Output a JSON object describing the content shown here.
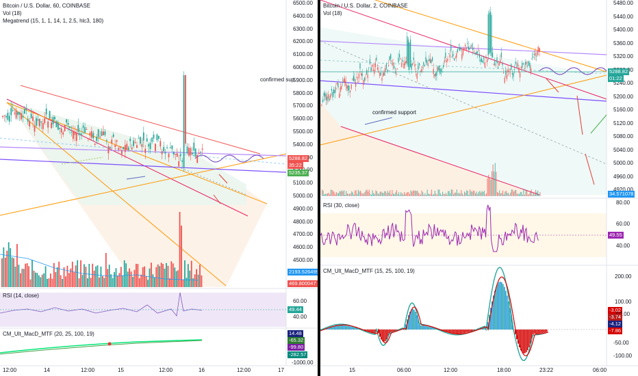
{
  "left": {
    "title": "Bitcoin / U.S. Dollar, 60, COINBASE",
    "vol": "Vol (18)",
    "megatrend": "Megatrend (15, 1, 1, 14, 1, 2.5, hlc3, 180)",
    "annotation": "confirmed sup",
    "price_ticks": [
      "6500.00",
      "6400.00",
      "6300.00",
      "6200.00",
      "6100.00",
      "6000.00",
      "5900.00",
      "5800.00",
      "5700.00",
      "5600.00",
      "5500.00",
      "5400.00",
      "5300.00",
      "5200.00",
      "5100.00",
      "5000.00",
      "4900.00",
      "4800.00",
      "4700.00",
      "4600.00",
      "4500.00"
    ],
    "price_tag": "5288.82",
    "countdown_tag": "35:22",
    "green_tag": "5235.37",
    "vol_tag": "2193.526499",
    "vol_tag2": "469.800047",
    "rsi_title": "RSI (14, close)",
    "rsi_ticks": [
      "60.00",
      "40.00"
    ],
    "rsi_tag": "49.44",
    "macd_title": "CM_Ult_MacD_MTF (20, 25, 100, 19)",
    "macd_tags": [
      "14.48",
      "-65.32",
      "-99.80",
      "-282.57"
    ],
    "macd_tick": "-1000.00",
    "time_axis": [
      "12:00",
      "14",
      "12:00",
      "15",
      "12:00",
      "16",
      "12:00",
      "17"
    ],
    "colors": {
      "up": "#26a69a",
      "down": "#ef5350",
      "volume": "#ef5350",
      "rsi": "#7e57c2",
      "price_tag": "#ef5350",
      "green_tag": "#4caf50"
    }
  },
  "right": {
    "title": "Bitcoin / U.S. Dollar, 2, COINBASE",
    "vol": "Vol (18)",
    "annotation": "confirmed support",
    "price_ticks": [
      "5480.00",
      "5440.00",
      "5400.00",
      "5360.00",
      "5320.00",
      "5280.00",
      "5240.00",
      "5200.00",
      "5160.00",
      "5120.00",
      "5080.00",
      "5040.00",
      "5000.00",
      "4960.00",
      "4920.00"
    ],
    "price_tag": "5288.82",
    "countdown_tag": "01:22",
    "vol_tag": "34.571078",
    "rsi_title": "RSI (30, close)",
    "rsi_ticks": [
      "80.00",
      "60.00",
      "40.00"
    ],
    "rsi_tag": "49.55",
    "macd_title": "CM_Ult_MacD_MTF (15, 25, 100, 19)",
    "macd_ticks": [
      "200.00",
      "100.00",
      "50.00",
      "-50.00",
      "-100.00"
    ],
    "macd_tags": [
      "-3.02",
      "-3.74",
      "-4.12",
      "-7.86"
    ],
    "time_axis": [
      "15",
      "06:00",
      "12:00",
      "18:00",
      "23:22",
      "06:00"
    ],
    "colors": {
      "rsi": "#9c27b0",
      "macd_red": "#d50000",
      "macd_teal": "#26a69a",
      "macd_blue": "#2196f3"
    }
  }
}
